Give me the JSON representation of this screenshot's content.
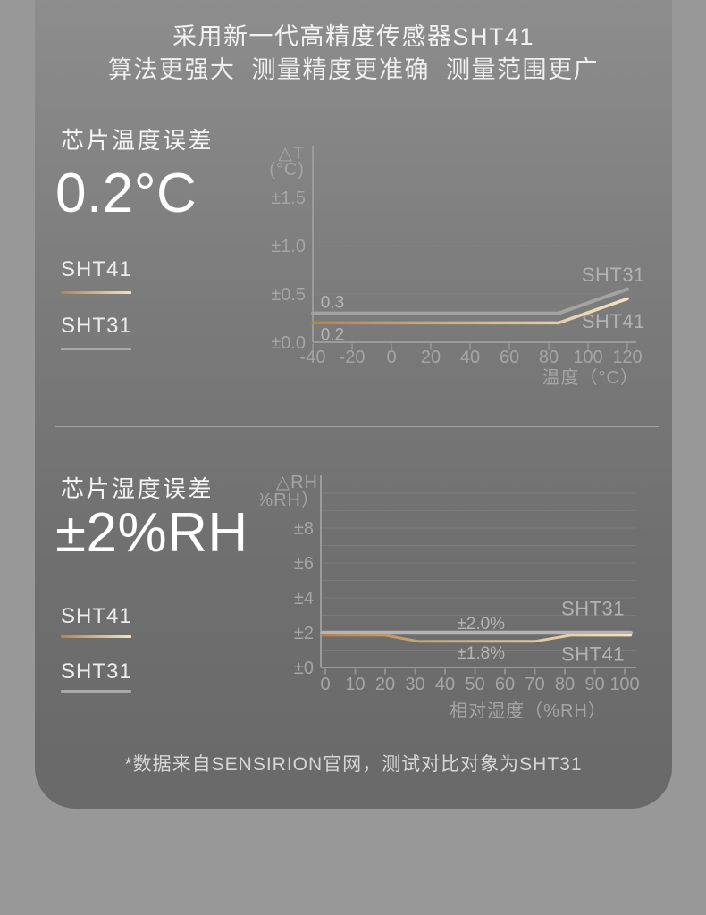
{
  "header": {
    "title": "采用新一代高精度传感器SHT41",
    "subtitle": "算法更强大  测量精度更准确  测量范围更广"
  },
  "colors": {
    "gold_dark": "#b3854e",
    "gold_light": "#f4e3c1",
    "line_gray_1": "#a3a3a3",
    "line_gray_2": "#b4b4b4"
  },
  "sections": [
    {
      "title": "芯片温度误差",
      "headline": "0.2°C",
      "legend": [
        {
          "name": "SHT41",
          "color": "gold"
        },
        {
          "name": "SHT31",
          "color": "gray"
        }
      ]
    },
    {
      "title": "芯片湿度误差",
      "headline": "±2%RH",
      "legend": [
        {
          "name": "SHT41",
          "color": "gold"
        },
        {
          "name": "SHT31",
          "color": "gray"
        }
      ]
    }
  ],
  "footnote": "*数据来自SENSIRION官网，测试对比对象为SHT31",
  "chart_data": [
    {
      "type": "line",
      "title": "芯片温度误差",
      "y_axis_title": [
        "△T",
        "(°C)"
      ],
      "x_axis_title": "温度（°C）",
      "xlabel": "温度（°C）",
      "ylabel": "△T (°C)",
      "x_ticks": [
        -40,
        -20,
        0,
        20,
        40,
        60,
        80,
        100,
        120
      ],
      "y_ticks": [
        {
          "v": 1.5,
          "label": "±1.5"
        },
        {
          "v": 1.0,
          "label": "±1.0"
        },
        {
          "v": 0.5,
          "label": "±0.5"
        },
        {
          "v": 0.0,
          "label": "±0.0"
        }
      ],
      "gridline_values": [
        0.5,
        1.0,
        1.5
      ],
      "xlim": [
        -40,
        125
      ],
      "ylim": [
        0,
        2.05
      ],
      "series": [
        {
          "name": "SHT31",
          "color": "gray",
          "points": [
            [
              -40,
              0.3
            ],
            [
              85,
              0.3
            ],
            [
              120,
              0.55
            ]
          ]
        },
        {
          "name": "SHT41",
          "color": "gold",
          "points": [
            [
              -40,
              0.2
            ],
            [
              85,
              0.2
            ],
            [
              120,
              0.45
            ]
          ]
        }
      ],
      "annotations": [
        {
          "text": "0.3",
          "x": -36,
          "y": 0.3,
          "dy": -6,
          "anchor": "start"
        },
        {
          "text": "0.2",
          "x": -36,
          "y": 0.2,
          "dy": 19,
          "anchor": "start"
        },
        {
          "text": "SHT31",
          "x": 129,
          "y": 0.63,
          "dy": 0,
          "anchor": "end",
          "cls": "serieslabel"
        },
        {
          "text": "SHT41",
          "x": 129,
          "y": 0.15,
          "dy": 0,
          "anchor": "end",
          "cls": "serieslabel"
        }
      ]
    },
    {
      "type": "line",
      "title": "芯片湿度误差",
      "y_axis_title": [
        "△RH",
        "（%RH）"
      ],
      "x_axis_title": "相对湿度（%RH）",
      "xlabel": "相对湿度（%RH）",
      "ylabel": "△RH（%RH）",
      "x_ticks": [
        0,
        10,
        20,
        30,
        40,
        50,
        60,
        70,
        80,
        90,
        100
      ],
      "y_ticks": [
        {
          "v": 8,
          "label": "±8"
        },
        {
          "v": 6,
          "label": "±6"
        },
        {
          "v": 4,
          "label": "±4"
        },
        {
          "v": 2,
          "label": "±2"
        },
        {
          "v": 0,
          "label": "±0"
        }
      ],
      "gridline_values": [
        1,
        2,
        3,
        4,
        5,
        6,
        7,
        8,
        9,
        10
      ],
      "xlim": [
        0,
        105
      ],
      "ylim": [
        0,
        11
      ],
      "series": [
        {
          "name": "SHT31",
          "color": "gray2",
          "points": [
            [
              -1,
              2.0
            ],
            [
              102,
              2.0
            ]
          ]
        },
        {
          "name": "SHT41",
          "color": "gold",
          "points": [
            [
              -1,
              1.85
            ],
            [
              20,
              1.85
            ],
            [
              31,
              1.5
            ],
            [
              70,
              1.5
            ],
            [
              82,
              1.85
            ],
            [
              102,
              1.85
            ]
          ]
        }
      ],
      "annotations": [
        {
          "text": "±2.0%",
          "x": 52,
          "y": 2.0,
          "dy": -4,
          "anchor": "middle"
        },
        {
          "text": "±1.8%",
          "x": 52,
          "y": 1.8,
          "dy": 25,
          "anchor": "middle"
        },
        {
          "text": "SHT31",
          "x": 100,
          "y": 3.0,
          "dy": 0,
          "anchor": "end",
          "cls": "serieslabel"
        },
        {
          "text": "SHT41",
          "x": 100,
          "y": 0.38,
          "dy": 0,
          "anchor": "end",
          "cls": "serieslabel"
        }
      ]
    }
  ]
}
